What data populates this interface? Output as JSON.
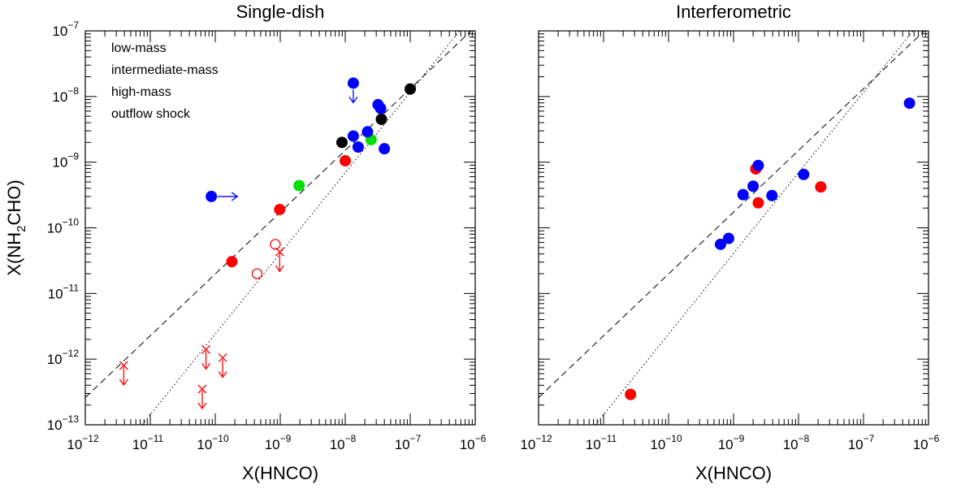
{
  "chart_data": [
    {
      "type": "scatter",
      "title": "Single-dish",
      "xlabel": "X(HNCO)",
      "ylabel_parts": [
        "X(NH",
        "2",
        "CHO)"
      ],
      "xlog": true,
      "ylog": true,
      "xlim": [
        1e-12,
        1e-06
      ],
      "ylim": [
        1e-13,
        1e-07
      ],
      "xticks": [
        {
          "value": 1e-12,
          "label": "10",
          "exponent": "−12"
        },
        {
          "value": 1e-11,
          "label": "10",
          "exponent": "−11"
        },
        {
          "value": 1e-10,
          "label": "10",
          "exponent": "−10"
        },
        {
          "value": 1e-09,
          "label": "10",
          "exponent": "−9"
        },
        {
          "value": 1e-08,
          "label": "10",
          "exponent": "−8"
        },
        {
          "value": 1e-07,
          "label": "10",
          "exponent": "−7"
        },
        {
          "value": 1e-06,
          "label": "10",
          "exponent": "−6"
        }
      ],
      "yticks": [
        {
          "value": 1e-13,
          "label": "10",
          "exponent": "−13"
        },
        {
          "value": 1e-12,
          "label": "10",
          "exponent": "−12"
        },
        {
          "value": 1e-11,
          "label": "10",
          "exponent": "−11"
        },
        {
          "value": 1e-10,
          "label": "10",
          "exponent": "−10"
        },
        {
          "value": 1e-09,
          "label": "10",
          "exponent": "−9"
        },
        {
          "value": 1e-08,
          "label": "10",
          "exponent": "−8"
        },
        {
          "value": 1e-07,
          "label": "10",
          "exponent": "−7"
        }
      ],
      "legend": "upper left",
      "series": [
        {
          "name": "low-mass",
          "color": "#ff0000",
          "marker": "filled",
          "x": [
            1.8e-10,
            9.8e-10,
            1e-08
          ],
          "y": [
            3.05e-11,
            1.9e-10,
            1.05e-09
          ]
        },
        {
          "color": "#ff0000",
          "marker": "open",
          "x": [
            4.4e-10,
            8.4e-10
          ],
          "y": [
            2e-11,
            5.6e-11
          ]
        },
        {
          "color": "#ff0000",
          "marker": "cross",
          "limit": "upper",
          "x": [
            3.9e-12,
            7.2e-11,
            1.3e-10,
            6.3e-11,
            9.8e-10
          ],
          "y": [
            8e-13,
            1.4e-12,
            1.05e-12,
            3.5e-13,
            4.3e-11
          ]
        },
        {
          "name": "intermediate-mass",
          "color": "#00e000",
          "marker": "filled",
          "x": [
            1.95e-09,
            2.5e-08
          ],
          "y": [
            4.4e-10,
            2.2e-09
          ]
        },
        {
          "name": "high-mass",
          "color": "#0000ff",
          "marker": "filled",
          "x": [
            1.33e-08,
            1.58e-08,
            2.2e-08,
            3.2e-08,
            3.5e-08,
            4e-08
          ],
          "y": [
            2.5e-09,
            1.7e-09,
            2.9e-09,
            7.5e-09,
            6.6e-09,
            1.6e-09
          ]
        },
        {
          "color": "#0000ff",
          "marker": "filled",
          "limit": "upper",
          "x": [
            1.33e-08
          ],
          "y": [
            1.6e-08
          ]
        },
        {
          "color": "#0000ff",
          "marker": "filled",
          "limit": "lower-x",
          "x": [
            8.7e-11
          ],
          "y": [
            3e-10
          ]
        },
        {
          "name": "outflow shock",
          "color": "#000000",
          "marker": "filled",
          "x": [
            8.9e-09,
            3.6e-08,
            1e-07
          ],
          "y": [
            2e-09,
            4.5e-09,
            1.3e-08
          ]
        }
      ],
      "lines": [
        {
          "style": "dashed",
          "x": [
            1e-12,
            1e-06
          ],
          "y": [
            2.6e-13,
            1.15e-07
          ]
        },
        {
          "style": "dotted",
          "x": [
            7.5e-12,
            5.75e-07
          ],
          "y": [
            1e-13,
            1e-07
          ]
        }
      ]
    },
    {
      "type": "scatter",
      "title": "Interferometric",
      "xlabel": "X(HNCO)",
      "xlog": true,
      "ylog": true,
      "xlim": [
        1e-12,
        1e-06
      ],
      "ylim": [
        1e-13,
        1e-07
      ],
      "xticks": [
        {
          "value": 1e-12,
          "label": "10",
          "exponent": "−12"
        },
        {
          "value": 1e-11,
          "label": "10",
          "exponent": "−11"
        },
        {
          "value": 1e-10,
          "label": "10",
          "exponent": "−10"
        },
        {
          "value": 1e-09,
          "label": "10",
          "exponent": "−9"
        },
        {
          "value": 1e-08,
          "label": "10",
          "exponent": "−8"
        },
        {
          "value": 1e-07,
          "label": "10",
          "exponent": "−7"
        },
        {
          "value": 1e-06,
          "label": "10",
          "exponent": "−6"
        }
      ],
      "yticks": [
        1e-13,
        1e-12,
        1e-11,
        1e-10,
        1e-09,
        1e-08,
        1e-07
      ],
      "series": [
        {
          "color": "#ff0000",
          "marker": "filled",
          "x": [
            2.6e-11,
            2.2e-09,
            2.4e-09,
            2.2e-08
          ],
          "y": [
            2.9e-13,
            7.9e-10,
            2.4e-10,
            4.2e-10
          ]
        },
        {
          "color": "#0000ff",
          "marker": "filled",
          "x": [
            6.3e-10,
            8.4e-10,
            1.4e-09,
            2e-09,
            2.4e-09,
            3.9e-09,
            1.2e-08,
            5.1e-07
          ],
          "y": [
            5.6e-11,
            6.9e-11,
            3.2e-10,
            4.3e-10,
            8.9e-10,
            3.1e-10,
            6.5e-10,
            7.9e-09
          ]
        }
      ],
      "lines": [
        {
          "style": "dashed",
          "x": [
            1e-12,
            1e-06
          ],
          "y": [
            2.6e-13,
            1.15e-07
          ]
        },
        {
          "style": "dotted",
          "x": [
            7.5e-12,
            5.75e-07
          ],
          "y": [
            1e-13,
            1e-07
          ]
        }
      ]
    }
  ]
}
